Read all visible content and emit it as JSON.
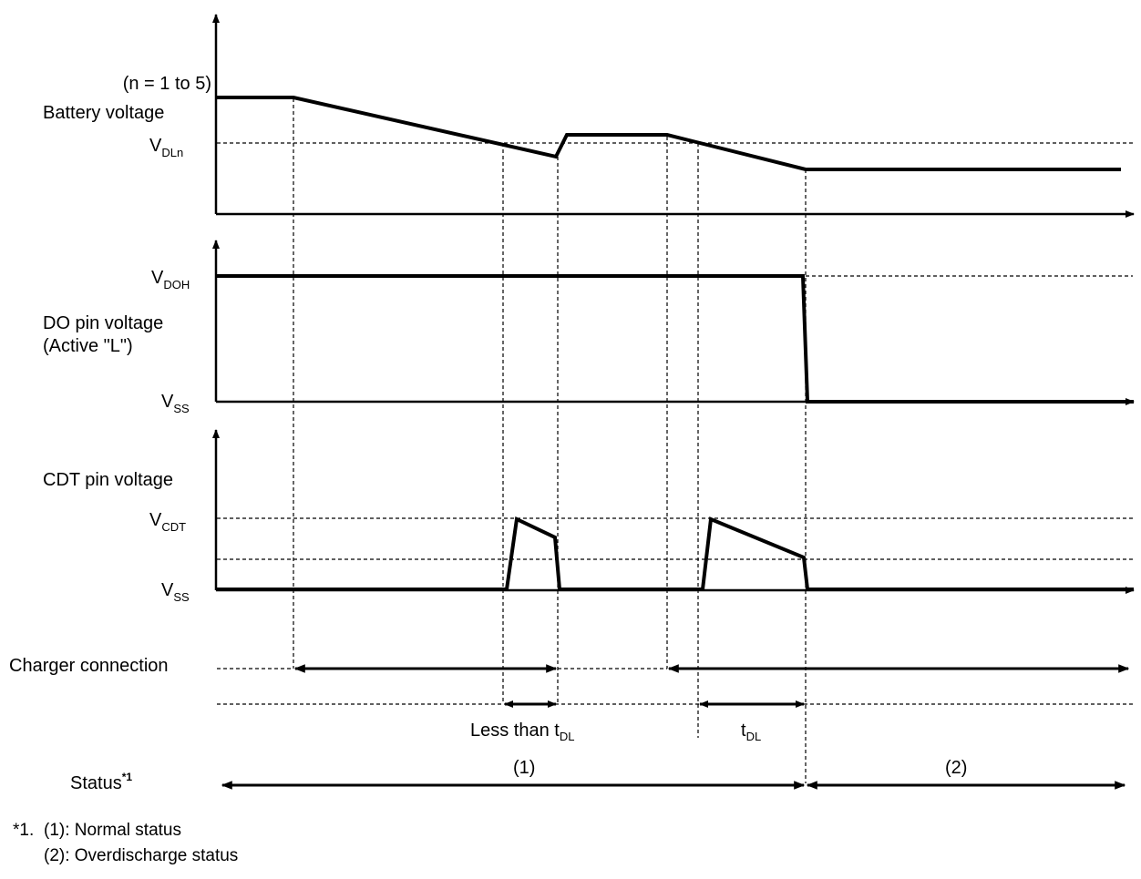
{
  "panels": {
    "battery": {
      "n_note": "(n = 1 to 5)",
      "label": "Battery voltage",
      "level_main": "V",
      "level_sub": "DLn"
    },
    "do_pin": {
      "label_line1": "DO pin voltage",
      "label_line2": "(Active \"L\")",
      "high_main": "V",
      "high_sub": "DOH",
      "low_main": "V",
      "low_sub": "SS"
    },
    "cdt_pin": {
      "label": "CDT pin voltage",
      "high_main": "V",
      "high_sub": "CDT",
      "low_main": "V",
      "low_sub": "SS"
    }
  },
  "charger": {
    "label": "Charger connection"
  },
  "timing": {
    "less_than_prefix": "Less than t",
    "less_than_sub": "DL",
    "tdl_main": "t",
    "tdl_sub": "DL"
  },
  "status": {
    "label": "Status",
    "footnote_mark": "*1",
    "region1": "(1)",
    "region2": "(2)"
  },
  "notes": {
    "mark": "*1.",
    "items": [
      "(1): Normal status",
      "(2): Overdischarge status"
    ]
  },
  "colors": {
    "line": "#000000",
    "background": "#ffffff"
  }
}
